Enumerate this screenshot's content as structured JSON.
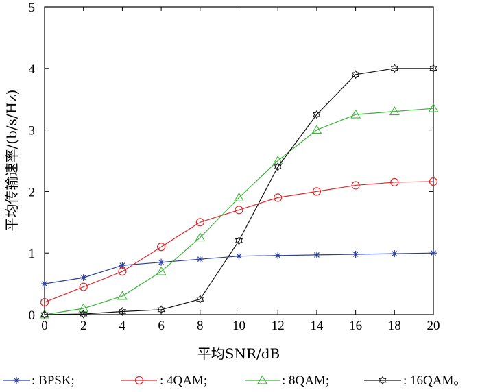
{
  "chart_data": {
    "type": "line",
    "title": "",
    "xlabel": "平均SNR/dB",
    "ylabel": "平均传输速率/(b/s/Hz)",
    "x": [
      0,
      2,
      4,
      6,
      8,
      10,
      12,
      14,
      16,
      18,
      20
    ],
    "xlim": [
      0,
      20
    ],
    "ylim": [
      0,
      5
    ],
    "xticks": [
      "0",
      "2",
      "4",
      "6",
      "8",
      "10",
      "12",
      "14",
      "16",
      "18",
      "20"
    ],
    "yticks": [
      "0",
      "1",
      "2",
      "3",
      "4",
      "5"
    ],
    "grid": false,
    "legend_position": "bottom",
    "series": [
      {
        "name": "BPSK",
        "legend_label": ": BPSK;",
        "color": "#2b3f99",
        "marker": "asterisk",
        "values": [
          0.5,
          0.6,
          0.8,
          0.85,
          0.9,
          0.95,
          0.96,
          0.97,
          0.98,
          0.99,
          1.0
        ]
      },
      {
        "name": "4QAM",
        "legend_label": ": 4QAM;",
        "color": "#e0262b",
        "marker": "circle",
        "values": [
          0.2,
          0.45,
          0.7,
          1.1,
          1.5,
          1.7,
          1.9,
          2.0,
          2.1,
          2.15,
          2.16
        ]
      },
      {
        "name": "8QAM",
        "legend_label": ": 8QAM;",
        "color": "#3cb339",
        "marker": "triangle",
        "values": [
          0.0,
          0.1,
          0.3,
          0.7,
          1.25,
          1.9,
          2.5,
          3.0,
          3.25,
          3.3,
          3.35
        ]
      },
      {
        "name": "16QAM",
        "legend_label": ": 16QAM。",
        "color": "#111111",
        "marker": "hexagram",
        "values": [
          0.0,
          0.01,
          0.05,
          0.08,
          0.25,
          1.2,
          2.4,
          3.25,
          3.9,
          4.0,
          4.0
        ]
      }
    ]
  }
}
